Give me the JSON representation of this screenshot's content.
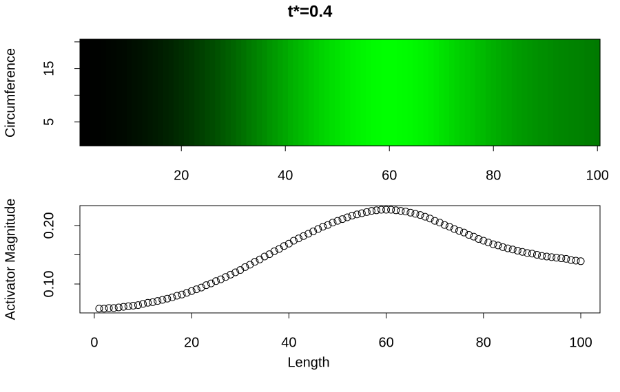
{
  "chart_data": [
    {
      "type": "heatmap",
      "title": "t*=0.4",
      "ylabel": "Circumference",
      "xlim": [
        0.5,
        100.5
      ],
      "ylim": [
        0.5,
        20.5
      ],
      "xticks": [
        20,
        40,
        60,
        80,
        100
      ],
      "yticks": [
        5,
        15
      ],
      "yminorticks": [
        10,
        20
      ],
      "colormap": [
        "#000000",
        "#00ff00"
      ]
    },
    {
      "type": "scatter",
      "xlabel": "Length",
      "ylabel": "Activator Magnitude",
      "xlim": [
        -2.96,
        103.96
      ],
      "ylim": [
        0.0506,
        0.234
      ],
      "xticks": [
        0,
        20,
        40,
        60,
        80,
        100
      ],
      "yticks": [
        {
          "value": 0.1,
          "label": "0.10"
        },
        {
          "value": 0.2,
          "label": "0.20"
        }
      ],
      "yminorticks": [
        0.15
      ],
      "color": "#000000",
      "x": [
        1,
        2,
        3,
        4,
        5,
        6,
        7,
        8,
        9,
        10,
        11,
        12,
        13,
        14,
        15,
        16,
        17,
        18,
        19,
        20,
        21,
        22,
        23,
        24,
        25,
        26,
        27,
        28,
        29,
        30,
        31,
        32,
        33,
        34,
        35,
        36,
        37,
        38,
        39,
        40,
        41,
        42,
        43,
        44,
        45,
        46,
        47,
        48,
        49,
        50,
        51,
        52,
        53,
        54,
        55,
        56,
        57,
        58,
        59,
        60,
        61,
        62,
        63,
        64,
        65,
        66,
        67,
        68,
        69,
        70,
        71,
        72,
        73,
        74,
        75,
        76,
        77,
        78,
        79,
        80,
        81,
        82,
        83,
        84,
        85,
        86,
        87,
        88,
        89,
        90,
        91,
        92,
        93,
        94,
        95,
        96,
        97,
        98,
        99,
        100
      ],
      "values": [
        0.058,
        0.058,
        0.059,
        0.059,
        0.06,
        0.061,
        0.062,
        0.063,
        0.064,
        0.066,
        0.068,
        0.069,
        0.071,
        0.073,
        0.075,
        0.077,
        0.08,
        0.082,
        0.085,
        0.088,
        0.091,
        0.094,
        0.098,
        0.101,
        0.105,
        0.108,
        0.112,
        0.116,
        0.12,
        0.124,
        0.129,
        0.133,
        0.138,
        0.142,
        0.147,
        0.151,
        0.156,
        0.16,
        0.165,
        0.169,
        0.174,
        0.178,
        0.182,
        0.186,
        0.19,
        0.194,
        0.198,
        0.201,
        0.205,
        0.208,
        0.211,
        0.214,
        0.217,
        0.219,
        0.221,
        0.223,
        0.225,
        0.226,
        0.227,
        0.227,
        0.227,
        0.226,
        0.225,
        0.224,
        0.222,
        0.22,
        0.218,
        0.215,
        0.212,
        0.208,
        0.205,
        0.201,
        0.198,
        0.194,
        0.191,
        0.188,
        0.184,
        0.181,
        0.177,
        0.174,
        0.171,
        0.168,
        0.166,
        0.163,
        0.161,
        0.159,
        0.157,
        0.155,
        0.153,
        0.152,
        0.15,
        0.148,
        0.147,
        0.146,
        0.145,
        0.144,
        0.143,
        0.141,
        0.14,
        0.139
      ]
    }
  ]
}
